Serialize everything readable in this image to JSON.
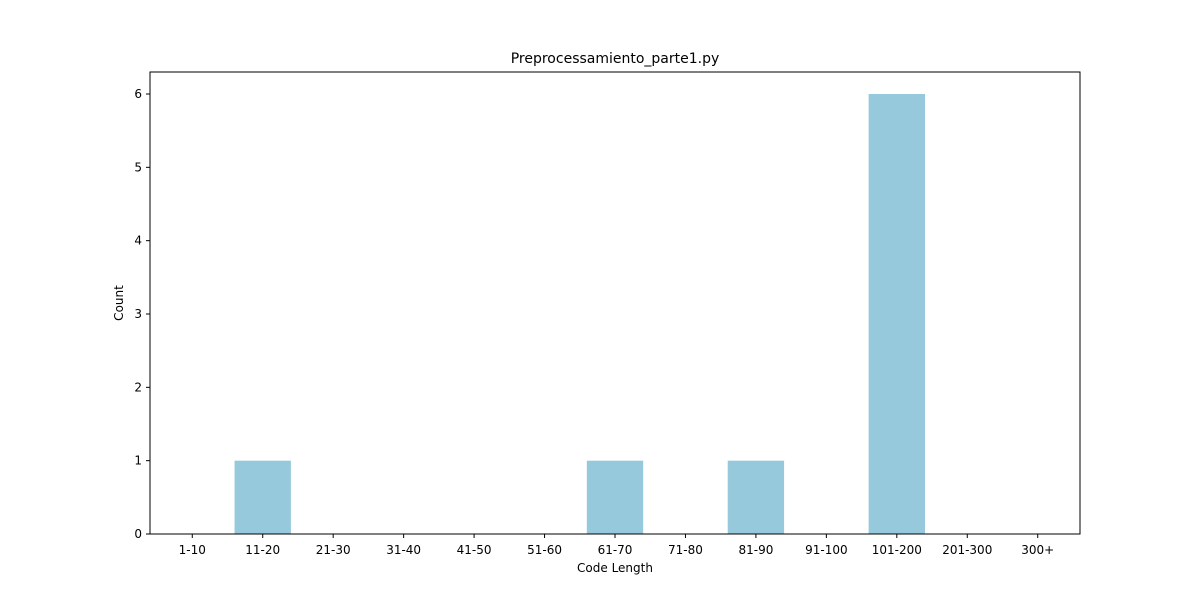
{
  "chart_data": {
    "type": "bar",
    "title": "Preprocessamiento_parte1.py",
    "xlabel": "Code Length",
    "ylabel": "Count",
    "categories": [
      "1-10",
      "11-20",
      "21-30",
      "31-40",
      "41-50",
      "51-60",
      "61-70",
      "71-80",
      "81-90",
      "91-100",
      "101-200",
      "201-300",
      "300+"
    ],
    "values": [
      0,
      1,
      0,
      0,
      0,
      0,
      1,
      0,
      1,
      0,
      6,
      0,
      0
    ],
    "ylim": [
      0,
      6.3
    ],
    "yticks": [
      0,
      1,
      2,
      3,
      4,
      5,
      6
    ],
    "bar_color": "#96c9dc",
    "grid": false,
    "legend": "none"
  }
}
